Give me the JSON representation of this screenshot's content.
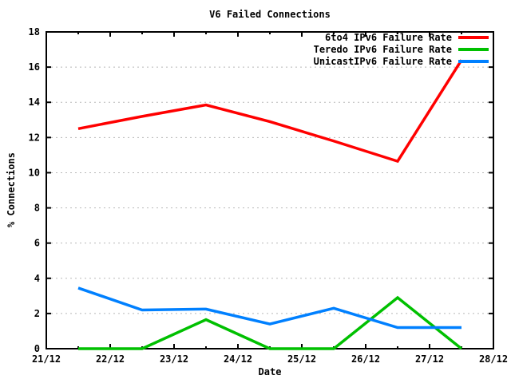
{
  "chart_data": {
    "type": "line",
    "title": "V6 Failed Connections",
    "xlabel": "Date",
    "ylabel": "% Connections",
    "xlim": [
      21,
      28
    ],
    "ylim": [
      0,
      18
    ],
    "x_tick_values": [
      21,
      22,
      23,
      24,
      25,
      26,
      27,
      28
    ],
    "x_tick_labels": [
      "21/12",
      "22/12",
      "23/12",
      "24/12",
      "25/12",
      "26/12",
      "27/12",
      "28/12"
    ],
    "x_minor_tick_step": 0.5,
    "y_tick_values": [
      0,
      2,
      4,
      6,
      8,
      10,
      12,
      14,
      16,
      18
    ],
    "y_tick_labels": [
      "0",
      "2",
      "4",
      "6",
      "8",
      "10",
      "12",
      "14",
      "16",
      "18"
    ],
    "grid": "horizontal dotted lines at y ticks",
    "grid_color": "#b8b8b8",
    "axis_color": "#000000",
    "background_color": "#ffffff",
    "legend_position": "top-right inside plot",
    "x": [
      21.5,
      22.5,
      23.5,
      24.5,
      25.5,
      26.5,
      27.5
    ],
    "series": [
      {
        "name": "6to4 IPv6 Failure Rate",
        "color": "#ff0000",
        "values": [
          12.5,
          13.2,
          13.85,
          12.9,
          11.8,
          10.65,
          16.4
        ]
      },
      {
        "name": "Teredo IPv6 Failure Rate",
        "color": "#00c000",
        "values": [
          0,
          0,
          1.65,
          0,
          0,
          2.9,
          0
        ]
      },
      {
        "name": "UnicastIPv6 Failure Rate",
        "color": "#0080ff",
        "values": [
          3.45,
          2.2,
          2.25,
          1.4,
          2.3,
          1.2,
          1.2
        ]
      }
    ]
  }
}
